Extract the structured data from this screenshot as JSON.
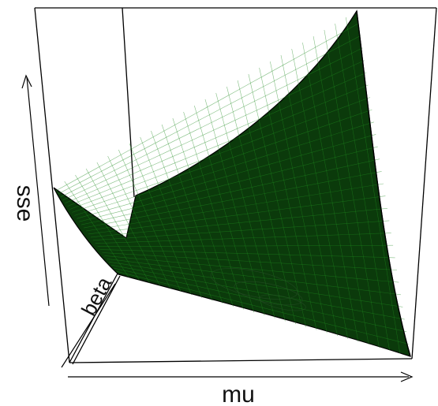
{
  "chart_data": {
    "type": "surface-3d",
    "title": "",
    "xlabel": "mu",
    "ylabel": "beta",
    "zlabel": "sse",
    "box": true,
    "axes_style": "arrows",
    "ticks_shown": false,
    "surface_color": "#0b3a0b",
    "mesh_color": "#1f8a1f",
    "outline_color": "#000000"
  }
}
